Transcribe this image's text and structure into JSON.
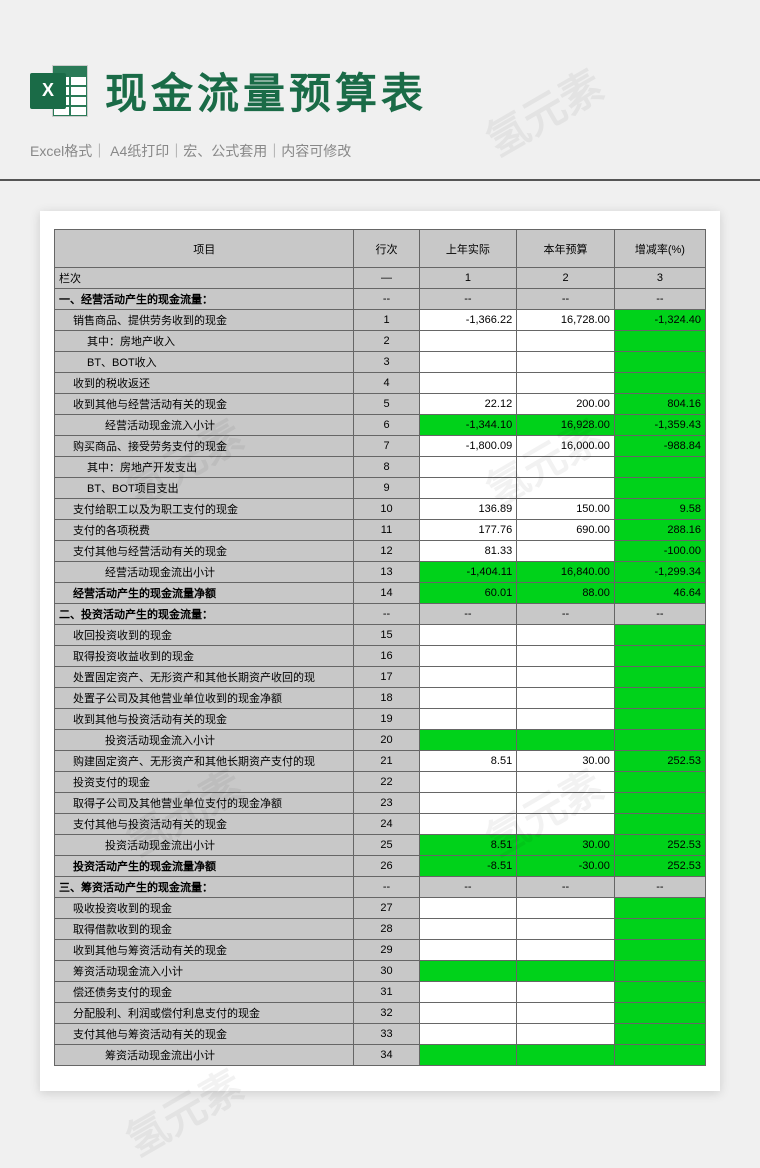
{
  "header": {
    "icon_letter": "X",
    "title": "现金流量预算表",
    "subtitle": "Excel格式｜ A4纸打印｜宏、公式套用｜内容可修改"
  },
  "watermark": "氢元素",
  "table": {
    "columns": [
      "项目",
      "行次",
      "上年实际",
      "本年预算",
      "增减率(%)"
    ],
    "col_widths_pct": [
      46,
      10,
      15,
      15,
      14
    ],
    "header_bg": "#c8c8c8",
    "border_color": "#666666",
    "green": "#00d21a",
    "white": "#ffffff",
    "rows": [
      {
        "item": "栏次",
        "indent": 0,
        "bold": false,
        "num": "—",
        "v1": "1",
        "v2": "2",
        "v3": "3",
        "style": "sep"
      },
      {
        "item": "一、经营活动产生的现金流量：",
        "indent": 0,
        "bold": true,
        "num": "--",
        "v1": "--",
        "v2": "--",
        "v3": "--",
        "style": "sep"
      },
      {
        "item": "销售商品、提供劳务收到的现金",
        "indent": 1,
        "num": "1",
        "v1": "-1,366.22",
        "v2": "16,728.00",
        "v3": "-1,324.40",
        "c1": "w",
        "c2": "w",
        "c3": "g"
      },
      {
        "item": "其中：房地产收入",
        "indent": 2,
        "num": "2",
        "v1": "",
        "v2": "",
        "v3": "",
        "c1": "w",
        "c2": "w",
        "c3": "g"
      },
      {
        "item": "BT、BOT收入",
        "indent": 2,
        "num": "3",
        "v1": "",
        "v2": "",
        "v3": "",
        "c1": "w",
        "c2": "w",
        "c3": "g"
      },
      {
        "item": "收到的税收返还",
        "indent": 1,
        "num": "4",
        "v1": "",
        "v2": "",
        "v3": "",
        "c1": "w",
        "c2": "w",
        "c3": "g"
      },
      {
        "item": "收到其他与经营活动有关的现金",
        "indent": 1,
        "num": "5",
        "v1": "22.12",
        "v2": "200.00",
        "v3": "804.16",
        "c1": "w",
        "c2": "w",
        "c3": "g"
      },
      {
        "item": "经营活动现金流入小计",
        "indent": 3,
        "num": "6",
        "v1": "-1,344.10",
        "v2": "16,928.00",
        "v3": "-1,359.43",
        "c1": "g",
        "c2": "g",
        "c3": "g"
      },
      {
        "item": "购买商品、接受劳务支付的现金",
        "indent": 1,
        "num": "7",
        "v1": "-1,800.09",
        "v2": "16,000.00",
        "v3": "-988.84",
        "c1": "w",
        "c2": "w",
        "c3": "g"
      },
      {
        "item": "其中：房地产开发支出",
        "indent": 2,
        "num": "8",
        "v1": "",
        "v2": "",
        "v3": "",
        "c1": "w",
        "c2": "w",
        "c3": "g"
      },
      {
        "item": "BT、BOT项目支出",
        "indent": 2,
        "num": "9",
        "v1": "",
        "v2": "",
        "v3": "",
        "c1": "w",
        "c2": "w",
        "c3": "g"
      },
      {
        "item": "支付给职工以及为职工支付的现金",
        "indent": 1,
        "num": "10",
        "v1": "136.89",
        "v2": "150.00",
        "v3": "9.58",
        "c1": "w",
        "c2": "w",
        "c3": "g"
      },
      {
        "item": "支付的各项税费",
        "indent": 1,
        "num": "11",
        "v1": "177.76",
        "v2": "690.00",
        "v3": "288.16",
        "c1": "w",
        "c2": "w",
        "c3": "g"
      },
      {
        "item": "支付其他与经营活动有关的现金",
        "indent": 1,
        "num": "12",
        "v1": "81.33",
        "v2": "",
        "v3": "-100.00",
        "c1": "w",
        "c2": "w",
        "c3": "g"
      },
      {
        "item": "经营活动现金流出小计",
        "indent": 3,
        "num": "13",
        "v1": "-1,404.11",
        "v2": "16,840.00",
        "v3": "-1,299.34",
        "c1": "g",
        "c2": "g",
        "c3": "g"
      },
      {
        "item": "经营活动产生的现金流量净额",
        "indent": 1,
        "bold": true,
        "num": "14",
        "v1": "60.01",
        "v2": "88.00",
        "v3": "46.64",
        "c1": "g",
        "c2": "g",
        "c3": "g"
      },
      {
        "item": "二、投资活动产生的现金流量：",
        "indent": 0,
        "bold": true,
        "num": "--",
        "v1": "--",
        "v2": "--",
        "v3": "--",
        "style": "sep"
      },
      {
        "item": "收回投资收到的现金",
        "indent": 1,
        "num": "15",
        "v1": "",
        "v2": "",
        "v3": "",
        "c1": "w",
        "c2": "w",
        "c3": "g"
      },
      {
        "item": "取得投资收益收到的现金",
        "indent": 1,
        "num": "16",
        "v1": "",
        "v2": "",
        "v3": "",
        "c1": "w",
        "c2": "w",
        "c3": "g"
      },
      {
        "item": "处置固定资产、无形资产和其他长期资产收回的现",
        "indent": 1,
        "num": "17",
        "v1": "",
        "v2": "",
        "v3": "",
        "c1": "w",
        "c2": "w",
        "c3": "g"
      },
      {
        "item": "处置子公司及其他营业单位收到的现金净额",
        "indent": 1,
        "num": "18",
        "v1": "",
        "v2": "",
        "v3": "",
        "c1": "w",
        "c2": "w",
        "c3": "g"
      },
      {
        "item": "收到其他与投资活动有关的现金",
        "indent": 1,
        "num": "19",
        "v1": "",
        "v2": "",
        "v3": "",
        "c1": "w",
        "c2": "w",
        "c3": "g"
      },
      {
        "item": "投资活动现金流入小计",
        "indent": 3,
        "num": "20",
        "v1": "",
        "v2": "",
        "v3": "",
        "c1": "g",
        "c2": "g",
        "c3": "g"
      },
      {
        "item": "购建固定资产、无形资产和其他长期资产支付的现",
        "indent": 1,
        "num": "21",
        "v1": "8.51",
        "v2": "30.00",
        "v3": "252.53",
        "c1": "w",
        "c2": "w",
        "c3": "g"
      },
      {
        "item": "投资支付的现金",
        "indent": 1,
        "num": "22",
        "v1": "",
        "v2": "",
        "v3": "",
        "c1": "w",
        "c2": "w",
        "c3": "g"
      },
      {
        "item": "取得子公司及其他营业单位支付的现金净额",
        "indent": 1,
        "num": "23",
        "v1": "",
        "v2": "",
        "v3": "",
        "c1": "w",
        "c2": "w",
        "c3": "g"
      },
      {
        "item": "支付其他与投资活动有关的现金",
        "indent": 1,
        "num": "24",
        "v1": "",
        "v2": "",
        "v3": "",
        "c1": "w",
        "c2": "w",
        "c3": "g"
      },
      {
        "item": "投资活动现金流出小计",
        "indent": 3,
        "num": "25",
        "v1": "8.51",
        "v2": "30.00",
        "v3": "252.53",
        "c1": "g",
        "c2": "g",
        "c3": "g"
      },
      {
        "item": "投资活动产生的现金流量净额",
        "indent": 1,
        "bold": true,
        "num": "26",
        "v1": "-8.51",
        "v2": "-30.00",
        "v3": "252.53",
        "c1": "g",
        "c2": "g",
        "c3": "g"
      },
      {
        "item": "三、筹资活动产生的现金流量：",
        "indent": 0,
        "bold": true,
        "num": "--",
        "v1": "--",
        "v2": "--",
        "v3": "--",
        "style": "sep"
      },
      {
        "item": "吸收投资收到的现金",
        "indent": 1,
        "num": "27",
        "v1": "",
        "v2": "",
        "v3": "",
        "c1": "w",
        "c2": "w",
        "c3": "g"
      },
      {
        "item": "取得借款收到的现金",
        "indent": 1,
        "num": "28",
        "v1": "",
        "v2": "",
        "v3": "",
        "c1": "w",
        "c2": "w",
        "c3": "g"
      },
      {
        "item": "收到其他与筹资活动有关的现金",
        "indent": 1,
        "num": "29",
        "v1": "",
        "v2": "",
        "v3": "",
        "c1": "w",
        "c2": "w",
        "c3": "g"
      },
      {
        "item": "筹资活动现金流入小计",
        "indent": 1,
        "num": "30",
        "v1": "",
        "v2": "",
        "v3": "",
        "c1": "g",
        "c2": "g",
        "c3": "g"
      },
      {
        "item": "偿还债务支付的现金",
        "indent": 1,
        "num": "31",
        "v1": "",
        "v2": "",
        "v3": "",
        "c1": "w",
        "c2": "w",
        "c3": "g"
      },
      {
        "item": "分配股利、利润或偿付利息支付的现金",
        "indent": 1,
        "num": "32",
        "v1": "",
        "v2": "",
        "v3": "",
        "c1": "w",
        "c2": "w",
        "c3": "g"
      },
      {
        "item": "支付其他与筹资活动有关的现金",
        "indent": 1,
        "num": "33",
        "v1": "",
        "v2": "",
        "v3": "",
        "c1": "w",
        "c2": "w",
        "c3": "g"
      },
      {
        "item": "筹资活动现金流出小计",
        "indent": 3,
        "num": "34",
        "v1": "",
        "v2": "",
        "v3": "",
        "c1": "g",
        "c2": "g",
        "c3": "g"
      }
    ]
  }
}
